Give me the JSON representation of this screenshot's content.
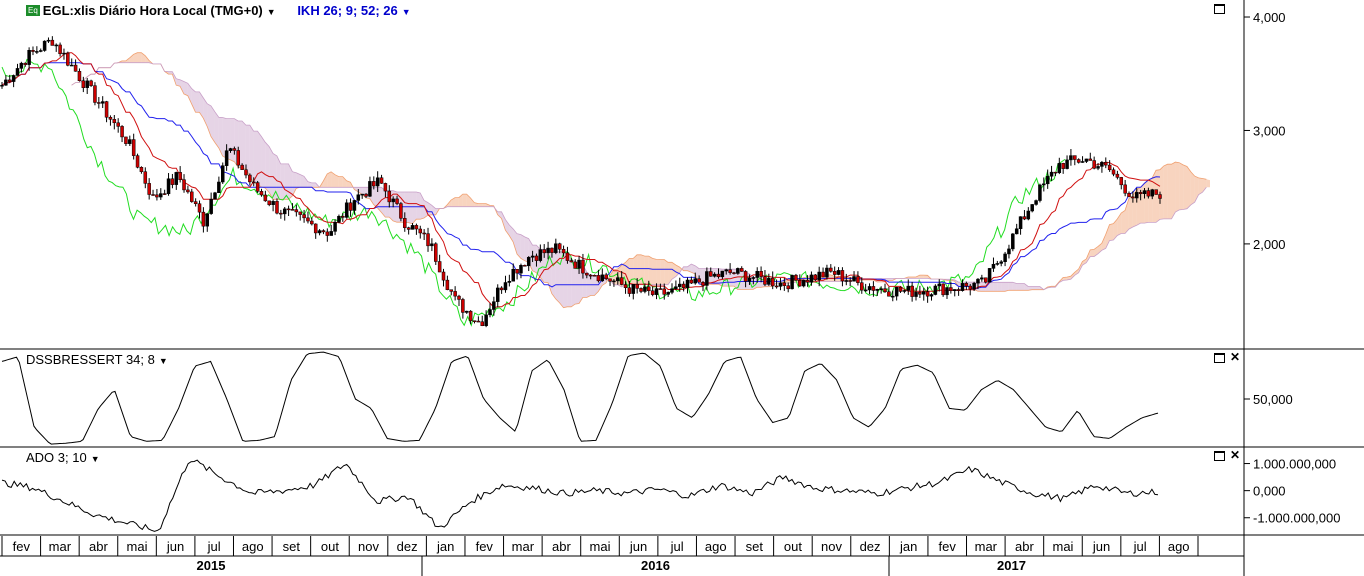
{
  "header": {
    "symbol_badge": "Eq",
    "title": "EGL:xlis Diário Hora Local (TMG+0)",
    "indicator": "IKH 26; 9; 52; 26"
  },
  "panels": {
    "dss_label": "DSSBRESSERT 34; 8",
    "ado_label": "ADO 3; 10"
  },
  "icons": {
    "window_button": "maximize-icon",
    "close_button": "close-icon",
    "dropdown": "chevron-down-icon"
  },
  "colors": {
    "background": "#ffffff",
    "price_up": "#000000",
    "price_down": "#cc0000",
    "tenkan": "#d01010",
    "kijun": "#2222ee",
    "chikou": "#22dd22",
    "kumo_bear": "#c8a0c8",
    "kumo_bull": "#f0a070",
    "indicator_line": "#000000",
    "header_indicator": "#0000cc"
  },
  "chart_data": [
    {
      "type": "line",
      "subtype": "candlestick-ichimoku",
      "title": "EGL:xlis Diário Hora Local (TMG+0)",
      "y_ticks": [
        "4,000",
        "3,000",
        "2,000"
      ],
      "ylim": [
        1100,
        4150
      ],
      "x_months": [
        "fev",
        "mar",
        "abr",
        "mai",
        "jun",
        "jul",
        "ago",
        "set",
        "out",
        "nov",
        "dez",
        "jan",
        "fev",
        "mar",
        "abr",
        "mai",
        "jun",
        "jul",
        "ago",
        "set",
        "out",
        "nov",
        "dez",
        "jan",
        "fev",
        "mar",
        "abr",
        "mai",
        "jun",
        "jul",
        "ago"
      ],
      "x_years": [
        "2015",
        "2016",
        "2017"
      ],
      "price_close_approx": [
        3400,
        3650,
        3800,
        3500,
        3200,
        2900,
        2400,
        2600,
        2200,
        2850,
        2500,
        2300,
        2200,
        2100,
        2400,
        2550,
        2200,
        2000,
        1500,
        1300,
        1700,
        1900,
        1950,
        1800,
        1700,
        1600,
        1550,
        1600,
        1700,
        1750,
        1700,
        1650,
        1700,
        1750,
        1650,
        1600,
        1580,
        1600,
        1620,
        1650,
        2000,
        2400,
        2700,
        2750,
        2650,
        2400,
        2450
      ],
      "chikou_approx": [
        3500,
        3600,
        2800,
        2200,
        2100,
        2600,
        2400,
        2200,
        2300,
        1900,
        1300,
        1500,
        1900,
        1800,
        1600,
        1550,
        1650,
        1700,
        1650,
        1600,
        1620,
        1700,
        2400,
        2700
      ],
      "grid": false,
      "legend": "none"
    },
    {
      "type": "line",
      "title": "DSSBRESSERT 34; 8",
      "y_ticks": [
        "50,000"
      ],
      "ylim": [
        0,
        100
      ],
      "values_approx": [
        90,
        95,
        20,
        2,
        3,
        5,
        40,
        60,
        10,
        5,
        6,
        40,
        85,
        90,
        50,
        5,
        6,
        10,
        70,
        98,
        100,
        95,
        50,
        40,
        8,
        5,
        6,
        40,
        90,
        96,
        50,
        30,
        15,
        80,
        92,
        60,
        5,
        6,
        45,
        96,
        99,
        85,
        40,
        30,
        55,
        90,
        95,
        50,
        25,
        30,
        80,
        88,
        70,
        30,
        20,
        40,
        82,
        86,
        78,
        40,
        38,
        60,
        70,
        60,
        40,
        20,
        15,
        38,
        10,
        8,
        20,
        30,
        35
      ]
    },
    {
      "type": "line",
      "title": "ADO 3; 10",
      "y_ticks": [
        "1.000.000,000",
        "0,000",
        "-1.000.000,000"
      ],
      "ylim": [
        -1600000000,
        1500000000
      ],
      "values_approx": [
        300000000,
        100000000,
        -400000000,
        -900000000,
        -1200000000,
        -1500000000,
        1200000000,
        500000000,
        -100000000,
        0,
        200000000,
        1000000000,
        -400000000,
        -200000000,
        -1400000000,
        -400000000,
        200000000,
        100000000,
        -100000000,
        0,
        -100000000,
        50000000,
        -200000000,
        200000000,
        -100000000,
        500000000,
        100000000,
        0,
        -100000000,
        100000000,
        300000000,
        800000000,
        300000000,
        -100000000,
        -300000000,
        200000000,
        -100000000,
        -50000000
      ]
    }
  ]
}
